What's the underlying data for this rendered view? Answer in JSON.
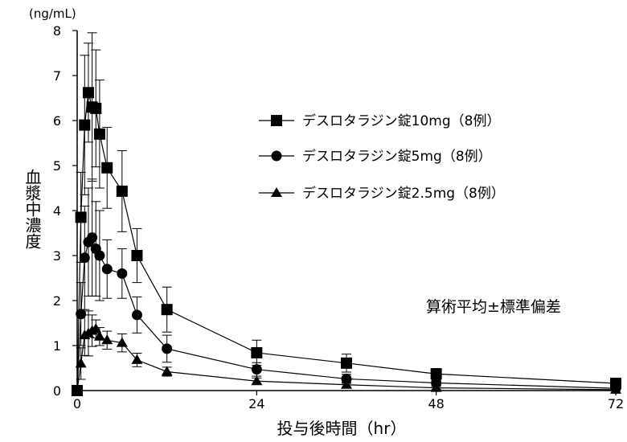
{
  "chart_data": {
    "type": "line",
    "y_unit": "(ng/mL)",
    "ylabel": "血漿中濃度",
    "xlabel": "投与後時間（hr）",
    "xlim": [
      0,
      72
    ],
    "ylim": [
      0,
      8
    ],
    "x_ticks": [
      0,
      24,
      48,
      72
    ],
    "y_ticks": [
      0,
      1,
      2,
      3,
      4,
      5,
      6,
      7,
      8
    ],
    "grid": false,
    "legend_position": "top-right",
    "note": "算術平均±標準偏差",
    "series": [
      {
        "name": "デスロタラジン錠10mg（8例）",
        "marker": "square",
        "x": [
          0,
          0.5,
          1,
          1.5,
          2,
          2.5,
          3,
          4,
          6,
          8,
          12,
          24,
          36,
          48,
          72
        ],
        "y": [
          0,
          3.85,
          5.9,
          6.62,
          6.3,
          6.27,
          5.7,
          4.95,
          4.43,
          3.0,
          1.8,
          0.84,
          0.61,
          0.37,
          0.16
        ],
        "sd": [
          0,
          1.0,
          1.55,
          1.1,
          1.65,
          1.3,
          1.2,
          0.9,
          0.9,
          0.6,
          0.5,
          0.28,
          0.2,
          0.12,
          0.05
        ]
      },
      {
        "name": "デスロタラジン錠5mg（8例）",
        "marker": "circle",
        "x": [
          0,
          0.5,
          1,
          1.5,
          2,
          2.5,
          3,
          4,
          6,
          8,
          12,
          24,
          36,
          48,
          72
        ],
        "y": [
          0,
          1.7,
          2.95,
          3.3,
          3.4,
          3.15,
          3.0,
          2.7,
          2.6,
          1.68,
          0.93,
          0.47,
          0.26,
          0.17,
          0.05
        ],
        "sd": [
          0,
          0.7,
          1.15,
          1.2,
          1.3,
          1.05,
          1.0,
          0.65,
          0.55,
          0.4,
          0.3,
          0.15,
          0.1,
          0.06,
          0.03
        ]
      },
      {
        "name": "デスロタラジン錠2.5mg（8例）",
        "marker": "triangle",
        "x": [
          0,
          0.5,
          1,
          1.5,
          2,
          2.5,
          3,
          4,
          6,
          8,
          12,
          24,
          36,
          48,
          72
        ],
        "y": [
          0,
          0.6,
          1.23,
          1.27,
          1.33,
          1.37,
          1.2,
          1.12,
          1.06,
          0.68,
          0.42,
          0.21,
          0.13,
          0.06,
          0.02
        ],
        "sd": [
          0,
          0.35,
          0.45,
          0.5,
          0.35,
          0.2,
          0.2,
          0.2,
          0.2,
          0.15,
          0.1,
          0.07,
          0.05,
          0.03,
          0.01
        ]
      }
    ]
  }
}
